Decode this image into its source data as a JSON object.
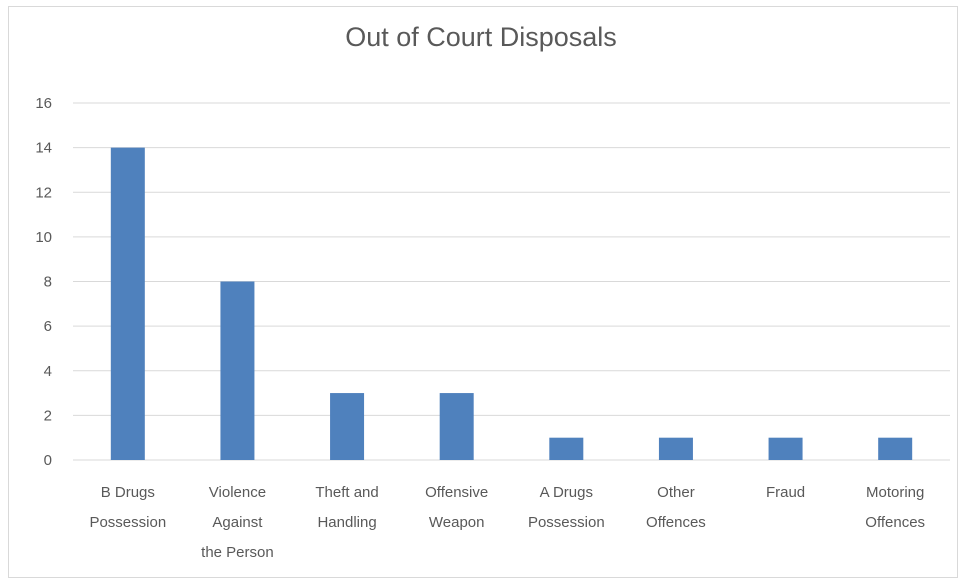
{
  "chart_data": {
    "type": "bar",
    "title": "Out of Court Disposals",
    "xlabel": "",
    "ylabel": "",
    "categories": [
      [
        "B Drugs",
        "Possession"
      ],
      [
        "Violence",
        "Against",
        "the Person"
      ],
      [
        "Theft and",
        "Handling"
      ],
      [
        "Offensive",
        "Weapon"
      ],
      [
        "A Drugs",
        "Possession"
      ],
      [
        "Other",
        "Offences"
      ],
      [
        "Fraud"
      ],
      [
        "Motoring",
        "Offences"
      ]
    ],
    "values": [
      14,
      8,
      3,
      3,
      1,
      1,
      1,
      1
    ],
    "ylim": [
      0,
      16
    ],
    "yticks": [
      0,
      2,
      4,
      6,
      8,
      10,
      12,
      14,
      16
    ],
    "grid": true,
    "legend": "none",
    "bar_color": "#4f81bd"
  }
}
